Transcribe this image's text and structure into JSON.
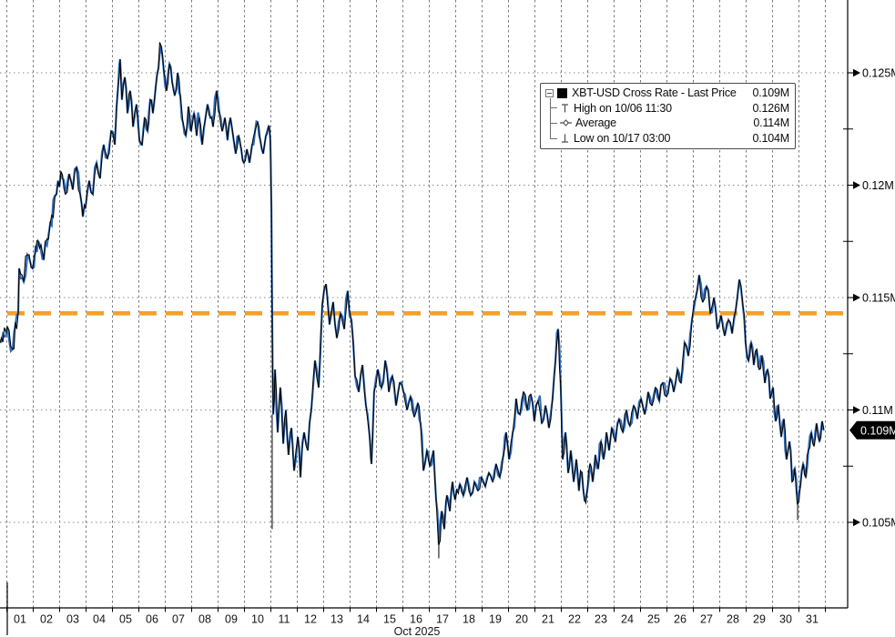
{
  "legend": {
    "rows": [
      {
        "label": "XBT-USD Cross Rate - Last Price",
        "value": "0.109M",
        "icon": "series-swatch"
      },
      {
        "label": "High on 10/06 11:30",
        "value": "0.126M",
        "icon": "high-marker"
      },
      {
        "label": "Average",
        "value": "0.114M",
        "icon": "average-marker"
      },
      {
        "label": "Low on 10/17 03:00",
        "value": "0.104M",
        "icon": "low-marker"
      }
    ]
  },
  "x_axis": {
    "days": [
      "01",
      "02",
      "03",
      "04",
      "05",
      "06",
      "07",
      "08",
      "09",
      "10",
      "11",
      "12",
      "13",
      "14",
      "15",
      "16",
      "17",
      "18",
      "19",
      "20",
      "21",
      "22",
      "23",
      "24",
      "25",
      "26",
      "27",
      "28",
      "29",
      "30",
      "31"
    ],
    "month_label": "Oct 2025"
  },
  "y_axis": {
    "ticks": [
      {
        "label": "0.125M",
        "value": 0.125
      },
      {
        "label": "0.12M",
        "value": 0.12
      },
      {
        "label": "0.115M",
        "value": 0.115
      },
      {
        "label": "0.11M",
        "value": 0.11
      },
      {
        "label": "0.105M",
        "value": 0.105
      }
    ],
    "minor_tick_values": [
      0.1225,
      0.1175,
      0.1125,
      0.1075
    ],
    "last_price": {
      "label": "0.109M",
      "value": 0.1091
    }
  },
  "colors": {
    "line_blue": "#2f6cba",
    "line_black": "#000000",
    "average_orange": "#f5a126",
    "grid": "#777777",
    "axis": "#000000",
    "badge_bg": "#000000",
    "badge_text": "#ffffff"
  },
  "chart_data": {
    "type": "line",
    "title": "XBT-USD Cross Rate - Last Price",
    "x_unit": "day of October 2025 (decimal day-of-month)",
    "y_unit": "price (M = million USD per 1000 BTC scale shown, e.g. 0.109M)",
    "ylim": [
      0.101,
      0.128
    ],
    "xlabel": "Oct 2025",
    "grid": true,
    "legend_position": "top-right",
    "average": 0.1143,
    "high": {
      "time": "10/06 11:30",
      "value": 0.126
    },
    "low": {
      "time": "10/17 03:00",
      "value": 0.104
    },
    "last": 0.109,
    "series": [
      {
        "name": "XBT-USD Cross Rate - Last Price",
        "points": [
          [
            0.74,
            0.113
          ],
          [
            1.02,
            0.1137
          ],
          [
            1.22,
            0.1127
          ],
          [
            1.43,
            0.1143
          ],
          [
            1.47,
            0.1163
          ],
          [
            1.64,
            0.1157
          ],
          [
            1.78,
            0.1169
          ],
          [
            1.98,
            0.1163
          ],
          [
            2.19,
            0.1175
          ],
          [
            2.4,
            0.1167
          ],
          [
            2.64,
            0.1183
          ],
          [
            2.88,
            0.1196
          ],
          [
            3.05,
            0.1206
          ],
          [
            3.22,
            0.1196
          ],
          [
            3.36,
            0.1205
          ],
          [
            3.5,
            0.1198
          ],
          [
            3.64,
            0.1208
          ],
          [
            3.78,
            0.1196
          ],
          [
            3.88,
            0.1186
          ],
          [
            3.98,
            0.119
          ],
          [
            4.12,
            0.1202
          ],
          [
            4.26,
            0.1196
          ],
          [
            4.4,
            0.121
          ],
          [
            4.53,
            0.1203
          ],
          [
            4.67,
            0.1218
          ],
          [
            4.81,
            0.1212
          ],
          [
            4.95,
            0.1224
          ],
          [
            5.09,
            0.1218
          ],
          [
            5.22,
            0.1245
          ],
          [
            5.29,
            0.1256
          ],
          [
            5.36,
            0.1238
          ],
          [
            5.47,
            0.1248
          ],
          [
            5.57,
            0.1232
          ],
          [
            5.67,
            0.1242
          ],
          [
            5.78,
            0.1226
          ],
          [
            5.91,
            0.1236
          ],
          [
            6.02,
            0.122
          ],
          [
            6.12,
            0.1218
          ],
          [
            6.22,
            0.123
          ],
          [
            6.33,
            0.1224
          ],
          [
            6.43,
            0.1238
          ],
          [
            6.53,
            0.1232
          ],
          [
            6.64,
            0.1244
          ],
          [
            6.74,
            0.1252
          ],
          [
            6.84,
            0.1262
          ],
          [
            6.95,
            0.125
          ],
          [
            7.05,
            0.1242
          ],
          [
            7.16,
            0.1254
          ],
          [
            7.26,
            0.1246
          ],
          [
            7.36,
            0.124
          ],
          [
            7.47,
            0.125
          ],
          [
            7.57,
            0.124
          ],
          [
            7.67,
            0.1228
          ],
          [
            7.78,
            0.1222
          ],
          [
            7.88,
            0.1235
          ],
          [
            7.98,
            0.1224
          ],
          [
            8.09,
            0.1232
          ],
          [
            8.19,
            0.1222
          ],
          [
            8.29,
            0.123
          ],
          [
            8.4,
            0.1218
          ],
          [
            8.5,
            0.1228
          ],
          [
            8.6,
            0.1236
          ],
          [
            8.71,
            0.123
          ],
          [
            8.81,
            0.1226
          ],
          [
            8.95,
            0.1242
          ],
          [
            9.05,
            0.1232
          ],
          [
            9.16,
            0.1224
          ],
          [
            9.26,
            0.123
          ],
          [
            9.36,
            0.122
          ],
          [
            9.47,
            0.123
          ],
          [
            9.57,
            0.1222
          ],
          [
            9.67,
            0.1214
          ],
          [
            9.78,
            0.1222
          ],
          [
            9.88,
            0.1216
          ],
          [
            9.98,
            0.121
          ],
          [
            10.09,
            0.1216
          ],
          [
            10.19,
            0.121
          ],
          [
            10.29,
            0.1218
          ],
          [
            10.4,
            0.1224
          ],
          [
            10.5,
            0.1228
          ],
          [
            10.6,
            0.122
          ],
          [
            10.71,
            0.1214
          ],
          [
            10.81,
            0.1222
          ],
          [
            10.91,
            0.1226
          ],
          [
            10.98,
            0.122
          ],
          [
            11.02,
            0.119
          ],
          [
            11.05,
            0.114
          ],
          [
            11.09,
            0.1098
          ],
          [
            11.16,
            0.1118
          ],
          [
            11.26,
            0.109
          ],
          [
            11.36,
            0.111
          ],
          [
            11.47,
            0.1085
          ],
          [
            11.57,
            0.11
          ],
          [
            11.67,
            0.108
          ],
          [
            11.78,
            0.1092
          ],
          [
            11.88,
            0.1073
          ],
          [
            12.02,
            0.1088
          ],
          [
            12.12,
            0.107
          ],
          [
            12.26,
            0.109
          ],
          [
            12.4,
            0.1082
          ],
          [
            12.53,
            0.11
          ],
          [
            12.67,
            0.1122
          ],
          [
            12.81,
            0.111
          ],
          [
            12.95,
            0.1147
          ],
          [
            13.09,
            0.1156
          ],
          [
            13.22,
            0.1138
          ],
          [
            13.36,
            0.1148
          ],
          [
            13.5,
            0.1132
          ],
          [
            13.64,
            0.1143
          ],
          [
            13.78,
            0.1136
          ],
          [
            13.91,
            0.1153
          ],
          [
            14.05,
            0.114
          ],
          [
            14.19,
            0.1115
          ],
          [
            14.33,
            0.1108
          ],
          [
            14.47,
            0.112
          ],
          [
            14.6,
            0.1102
          ],
          [
            14.74,
            0.1088
          ],
          [
            14.81,
            0.1076
          ],
          [
            14.91,
            0.1108
          ],
          [
            15.05,
            0.1118
          ],
          [
            15.19,
            0.111
          ],
          [
            15.33,
            0.1122
          ],
          [
            15.47,
            0.1108
          ],
          [
            15.6,
            0.1115
          ],
          [
            15.74,
            0.1102
          ],
          [
            15.88,
            0.1112
          ],
          [
            16.02,
            0.1108
          ],
          [
            16.16,
            0.11
          ],
          [
            16.29,
            0.1106
          ],
          [
            16.43,
            0.1097
          ],
          [
            16.57,
            0.1103
          ],
          [
            16.67,
            0.1094
          ],
          [
            16.78,
            0.1073
          ],
          [
            16.91,
            0.1082
          ],
          [
            17.02,
            0.1075
          ],
          [
            17.16,
            0.1082
          ],
          [
            17.26,
            0.106
          ],
          [
            17.36,
            0.104
          ],
          [
            17.47,
            0.1055
          ],
          [
            17.57,
            0.1047
          ],
          [
            17.67,
            0.1062
          ],
          [
            17.78,
            0.1055
          ],
          [
            17.88,
            0.1068
          ],
          [
            17.98,
            0.106
          ],
          [
            18.16,
            0.1067
          ],
          [
            18.29,
            0.1062
          ],
          [
            18.43,
            0.107
          ],
          [
            18.57,
            0.1062
          ],
          [
            18.71,
            0.1068
          ],
          [
            18.84,
            0.1064
          ],
          [
            18.98,
            0.107
          ],
          [
            19.12,
            0.1066
          ],
          [
            19.26,
            0.1072
          ],
          [
            19.4,
            0.1068
          ],
          [
            19.53,
            0.1076
          ],
          [
            19.67,
            0.107
          ],
          [
            19.81,
            0.108
          ],
          [
            19.91,
            0.109
          ],
          [
            20.02,
            0.1078
          ],
          [
            20.16,
            0.109
          ],
          [
            20.29,
            0.1105
          ],
          [
            20.43,
            0.1098
          ],
          [
            20.57,
            0.1108
          ],
          [
            20.71,
            0.11
          ],
          [
            20.84,
            0.1107
          ],
          [
            20.98,
            0.1095
          ],
          [
            21.12,
            0.1104
          ],
          [
            21.26,
            0.1094
          ],
          [
            21.4,
            0.1102
          ],
          [
            21.53,
            0.1092
          ],
          [
            21.67,
            0.1105
          ],
          [
            21.78,
            0.1122
          ],
          [
            21.88,
            0.1136
          ],
          [
            21.98,
            0.111
          ],
          [
            22.05,
            0.1078
          ],
          [
            22.16,
            0.109
          ],
          [
            22.26,
            0.1072
          ],
          [
            22.36,
            0.1082
          ],
          [
            22.47,
            0.1068
          ],
          [
            22.57,
            0.1078
          ],
          [
            22.67,
            0.1064
          ],
          [
            22.78,
            0.1072
          ],
          [
            22.88,
            0.106
          ],
          [
            22.98,
            0.1064
          ],
          [
            23.09,
            0.1076
          ],
          [
            23.19,
            0.1068
          ],
          [
            23.29,
            0.108
          ],
          [
            23.4,
            0.1074
          ],
          [
            23.5,
            0.1086
          ],
          [
            23.6,
            0.1078
          ],
          [
            23.71,
            0.109
          ],
          [
            23.81,
            0.1082
          ],
          [
            23.91,
            0.1092
          ],
          [
            24.05,
            0.1086
          ],
          [
            24.19,
            0.1096
          ],
          [
            24.33,
            0.109
          ],
          [
            24.47,
            0.11
          ],
          [
            24.6,
            0.1093
          ],
          [
            24.74,
            0.1102
          ],
          [
            24.88,
            0.1096
          ],
          [
            25.02,
            0.1105
          ],
          [
            25.16,
            0.1098
          ],
          [
            25.29,
            0.1108
          ],
          [
            25.43,
            0.1102
          ],
          [
            25.57,
            0.111
          ],
          [
            25.71,
            0.1104
          ],
          [
            25.84,
            0.1112
          ],
          [
            25.98,
            0.1106
          ],
          [
            26.12,
            0.1114
          ],
          [
            26.26,
            0.1108
          ],
          [
            26.4,
            0.1118
          ],
          [
            26.53,
            0.1112
          ],
          [
            26.67,
            0.113
          ],
          [
            26.81,
            0.1124
          ],
          [
            26.95,
            0.114
          ],
          [
            27.09,
            0.115
          ],
          [
            27.22,
            0.116
          ],
          [
            27.36,
            0.1148
          ],
          [
            27.5,
            0.1155
          ],
          [
            27.64,
            0.1143
          ],
          [
            27.78,
            0.115
          ],
          [
            27.91,
            0.1136
          ],
          [
            28.05,
            0.1142
          ],
          [
            28.19,
            0.1133
          ],
          [
            28.33,
            0.114
          ],
          [
            28.47,
            0.1134
          ],
          [
            28.6,
            0.1144
          ],
          [
            28.74,
            0.1158
          ],
          [
            28.88,
            0.1146
          ],
          [
            28.98,
            0.113
          ],
          [
            29.09,
            0.1122
          ],
          [
            29.19,
            0.113
          ],
          [
            29.29,
            0.112
          ],
          [
            29.4,
            0.1127
          ],
          [
            29.5,
            0.1118
          ],
          [
            29.6,
            0.1124
          ],
          [
            29.71,
            0.1112
          ],
          [
            29.81,
            0.1118
          ],
          [
            29.91,
            0.1105
          ],
          [
            30.02,
            0.111
          ],
          [
            30.12,
            0.1095
          ],
          [
            30.22,
            0.1102
          ],
          [
            30.33,
            0.1088
          ],
          [
            30.43,
            0.1096
          ],
          [
            30.53,
            0.1078
          ],
          [
            30.64,
            0.1086
          ],
          [
            30.74,
            0.1068
          ],
          [
            30.84,
            0.1074
          ],
          [
            30.95,
            0.1058
          ],
          [
            31.05,
            0.1066
          ],
          [
            31.16,
            0.1076
          ],
          [
            31.26,
            0.107
          ],
          [
            31.36,
            0.1082
          ],
          [
            31.47,
            0.109
          ],
          [
            31.57,
            0.1084
          ],
          [
            31.67,
            0.1094
          ],
          [
            31.78,
            0.1086
          ],
          [
            31.88,
            0.1095
          ],
          [
            31.95,
            0.1091
          ]
        ],
        "wicks_day_from_to": [
          [
            11.05,
            0.1098,
            0.1047
          ],
          [
            17.36,
            0.104,
            0.1034
          ],
          [
            30.95,
            0.1058,
            0.1051
          ]
        ]
      }
    ]
  }
}
